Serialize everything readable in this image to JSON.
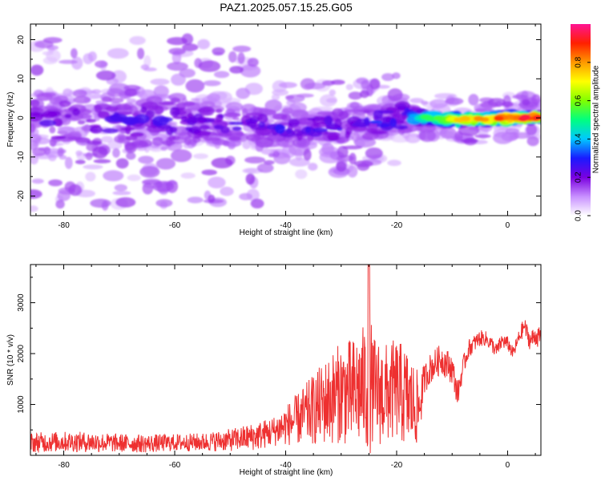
{
  "title": "PAZ1.2025.057.15.25.G05",
  "chart_data": [
    {
      "type": "heatmap",
      "title": "PAZ1.2025.057.15.25.G05",
      "xlabel": "Height of straight line (km)",
      "ylabel": "Frequency (Hz)",
      "xlim": [
        -86,
        6
      ],
      "ylim": [
        -25,
        24
      ],
      "xticks": [
        -80,
        -60,
        -40,
        -20,
        0
      ],
      "xtick_labels": [
        "-80",
        "-60",
        "-40",
        "-20",
        "0"
      ],
      "yticks": [
        20,
        10,
        0,
        -10,
        -20
      ],
      "ytick_labels": [
        "20",
        "10",
        "0",
        "-10",
        "-20"
      ],
      "colorbar": {
        "label": "Normalized spectral amplitude",
        "range": [
          0.0,
          1.0
        ],
        "ticks": [
          0.0,
          0.2,
          0.4,
          0.6,
          0.8
        ],
        "tick_labels": [
          "0.0",
          "0.2",
          "0.4",
          "0.6",
          "0.8"
        ],
        "colormap": "rainbow",
        "colors": [
          "#ffffff",
          "#c890ff",
          "#7a00e0",
          "#1a1aff",
          "#00c8ff",
          "#00ff80",
          "#80ff00",
          "#ffff00",
          "#ff9900",
          "#ff2000",
          "#ff1493"
        ]
      },
      "ridge": [
        {
          "x": -86,
          "y_center": -2.0,
          "half_width": 9,
          "amplitude": 0.22
        },
        {
          "x": -70,
          "y_center": -1.0,
          "half_width": 8,
          "amplitude": 0.25
        },
        {
          "x": -55,
          "y_center": -1.0,
          "half_width": 6,
          "amplitude": 0.24
        },
        {
          "x": -40,
          "y_center": -3.0,
          "half_width": 4,
          "amplitude": 0.26
        },
        {
          "x": -25,
          "y_center": -1.5,
          "half_width": 4,
          "amplitude": 0.28
        },
        {
          "x": -20,
          "y_center": 0.0,
          "half_width": 4,
          "amplitude": 0.3
        },
        {
          "x": -15,
          "y_center": 0.0,
          "half_width": 1.5,
          "amplitude": 0.5
        },
        {
          "x": -8,
          "y_center": -0.5,
          "half_width": 1.2,
          "amplitude": 0.75
        },
        {
          "x": 0,
          "y_center": 0.0,
          "half_width": 1.2,
          "amplitude": 0.85
        },
        {
          "x": 6,
          "y_center": 0.0,
          "half_width": 1.0,
          "amplitude": 0.88
        }
      ]
    },
    {
      "type": "line",
      "xlabel": "Height of straight line (km)",
      "ylabel": "SNR (10 * v/v)",
      "xlim": [
        -86,
        6
      ],
      "ylim": [
        0,
        3750
      ],
      "xticks": [
        -80,
        -60,
        -40,
        -20,
        0
      ],
      "xtick_labels": [
        "-80",
        "-60",
        "-40",
        "-20",
        "0"
      ],
      "yticks": [
        1000,
        2000,
        3000
      ],
      "ytick_labels": [
        "1000",
        "2000",
        "3000"
      ],
      "color": "#ee3030",
      "series": [
        {
          "x": [
            -86,
            -80,
            -75,
            -70,
            -65,
            -60,
            -55,
            -50,
            -45,
            -42,
            -38,
            -35,
            -32,
            -30,
            -28,
            -26,
            -25,
            -24,
            -22,
            -20,
            -18,
            -16,
            -15,
            -14,
            -12,
            -10,
            -9,
            -8,
            -7,
            -6,
            -5,
            -4,
            -3,
            -2,
            -1,
            0,
            1,
            2,
            3,
            4,
            5,
            6
          ],
          "y": [
            250,
            270,
            260,
            240,
            230,
            250,
            260,
            300,
            380,
            480,
            700,
            900,
            1100,
            1250,
            1200,
            1350,
            1400,
            1250,
            1200,
            1300,
            1100,
            900,
            1500,
            1700,
            1900,
            1700,
            1200,
            1750,
            2100,
            2200,
            2300,
            2300,
            2200,
            2050,
            2250,
            2200,
            2000,
            2300,
            2550,
            2250,
            2350,
            2300
          ],
          "noise": [
            200,
            200,
            200,
            180,
            180,
            170,
            180,
            220,
            280,
            300,
            500,
            700,
            900,
            1000,
            1100,
            1200,
            1400,
            1100,
            1000,
            1000,
            1000,
            700,
            300,
            300,
            300,
            300,
            250,
            200,
            180,
            170,
            160,
            150,
            150,
            150,
            150,
            140,
            130,
            150,
            180,
            180,
            200,
            200
          ]
        }
      ]
    }
  ]
}
